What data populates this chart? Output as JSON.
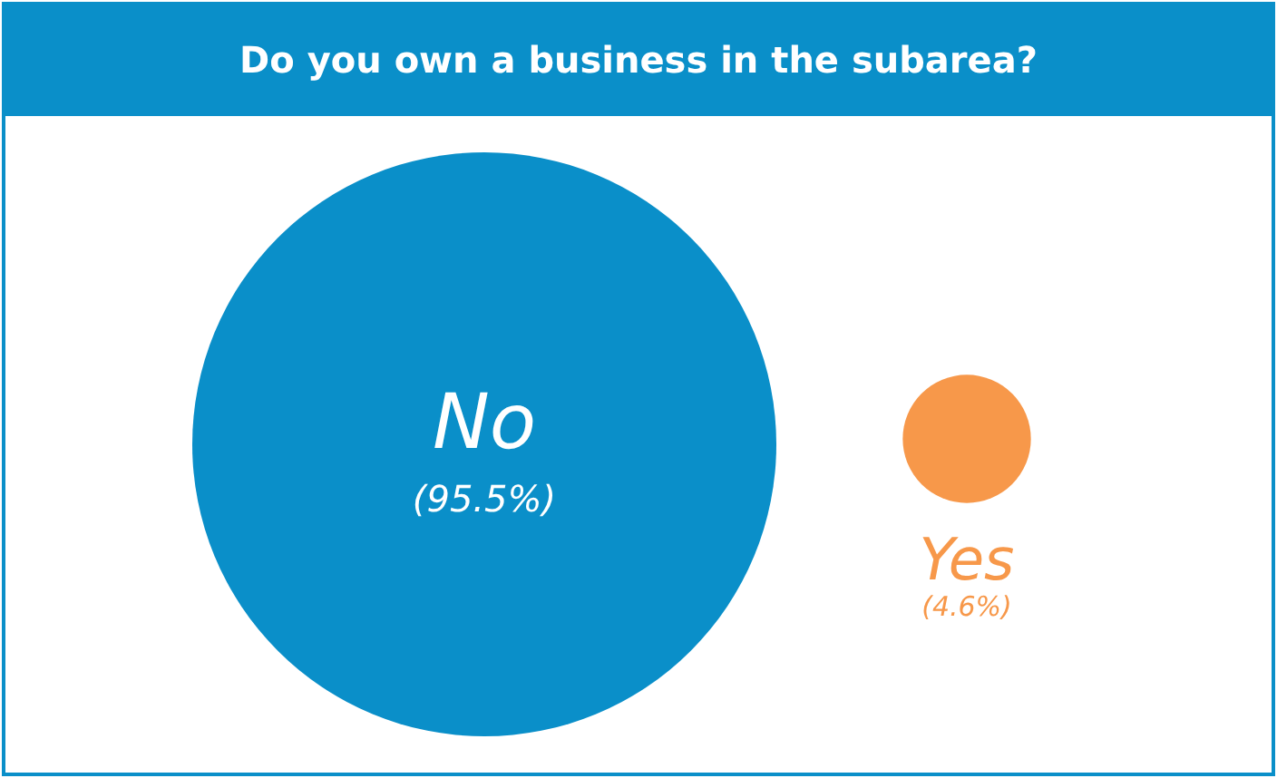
{
  "chart_data": {
    "type": "other",
    "title": "Do you own a business in the subarea?",
    "categories": [
      "No",
      "Yes"
    ],
    "values": [
      95.5,
      4.6
    ],
    "colors": [
      "#0a8fc9",
      "#f7984a"
    ],
    "value_labels": [
      "(95.5%)",
      "(4.6%)"
    ]
  }
}
